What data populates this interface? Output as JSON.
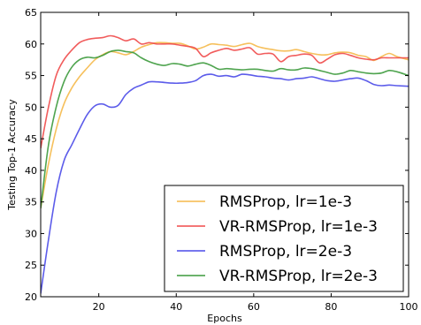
{
  "chart_data": {
    "type": "line",
    "title": "",
    "xlabel": "Epochs",
    "ylabel": "Testing Top-1 Accuracy",
    "xlim": [
      5,
      100
    ],
    "ylim": [
      20,
      65
    ],
    "xticks": [
      20,
      40,
      60,
      80,
      100
    ],
    "yticks": [
      20,
      25,
      30,
      35,
      40,
      45,
      50,
      55,
      60,
      65
    ],
    "grid": false,
    "legend_position": "lower-right",
    "series": [
      {
        "name": "RMSProp, lr=1e-3",
        "color": "#f5b94a",
        "x": [
          5,
          7,
          9,
          11,
          13,
          15,
          17,
          19,
          21,
          23,
          25,
          27,
          29,
          31,
          33,
          35,
          37,
          39,
          41,
          43,
          45,
          47,
          49,
          51,
          53,
          55,
          57,
          59,
          61,
          63,
          65,
          67,
          69,
          71,
          73,
          75,
          77,
          79,
          81,
          83,
          85,
          87,
          89,
          91,
          93,
          95,
          97,
          100
        ],
        "y": [
          34,
          41,
          46.5,
          50.5,
          53,
          54.8,
          56.2,
          57.5,
          58.3,
          58.8,
          58.6,
          58.3,
          58.8,
          59.5,
          59.9,
          60.2,
          60.2,
          60.1,
          60.1,
          59.7,
          59.2,
          59.5,
          60,
          59.9,
          59.8,
          59.6,
          59.9,
          60.1,
          59.6,
          59.3,
          59.1,
          58.9,
          58.9,
          59.1,
          58.8,
          58.5,
          58.3,
          58.3,
          58.6,
          58.7,
          58.6,
          58.2,
          58,
          57.4,
          58,
          58.5,
          58,
          57.5
        ]
      },
      {
        "name": "VR-RMSProp, lr=1e-3",
        "color": "#f04a4a",
        "x": [
          5,
          7,
          9,
          11,
          13,
          15,
          17,
          19,
          21,
          23,
          25,
          27,
          29,
          31,
          33,
          35,
          37,
          39,
          41,
          43,
          45,
          47,
          49,
          51,
          53,
          55,
          57,
          59,
          61,
          63,
          65,
          67,
          69,
          71,
          73,
          75,
          77,
          79,
          81,
          83,
          85,
          87,
          89,
          91,
          93,
          95,
          97,
          100
        ],
        "y": [
          43.5,
          50,
          55,
          57.5,
          59,
          60.2,
          60.7,
          60.9,
          61,
          61.3,
          61,
          60.5,
          60.8,
          60,
          60.2,
          60,
          60,
          60,
          59.8,
          59.6,
          59.3,
          58,
          58.6,
          59,
          59.3,
          59,
          59.2,
          59.4,
          58.4,
          58.5,
          58.4,
          57.2,
          58,
          58.2,
          58.4,
          58.2,
          57,
          57.6,
          58.3,
          58.5,
          58.2,
          57.8,
          57.6,
          57.5,
          57.8,
          57.8,
          57.8,
          57.8
        ]
      },
      {
        "name": "RMSProp, lr=2e-3",
        "color": "#4a4ae8",
        "x": [
          5,
          7,
          9,
          11,
          13,
          15,
          17,
          19,
          21,
          23,
          25,
          27,
          29,
          31,
          33,
          35,
          37,
          39,
          41,
          43,
          45,
          47,
          49,
          51,
          53,
          55,
          57,
          59,
          61,
          63,
          65,
          67,
          69,
          71,
          73,
          75,
          77,
          79,
          81,
          83,
          85,
          87,
          89,
          91,
          93,
          95,
          97,
          100
        ],
        "y": [
          20.5,
          29,
          36.5,
          41.5,
          44,
          46.5,
          48.8,
          50.2,
          50.5,
          50,
          50.3,
          52,
          53,
          53.5,
          54,
          54,
          53.9,
          53.8,
          53.8,
          53.9,
          54.2,
          55,
          55.2,
          54.9,
          55,
          54.8,
          55.2,
          55.1,
          54.9,
          54.8,
          54.6,
          54.5,
          54.3,
          54.5,
          54.6,
          54.8,
          54.5,
          54.2,
          54.1,
          54.3,
          54.5,
          54.6,
          54.2,
          53.6,
          53.4,
          53.5,
          53.4,
          53.3
        ]
      },
      {
        "name": "VR-RMSProp, lr=2e-3",
        "color": "#3c9a3c",
        "x": [
          5,
          7,
          9,
          11,
          13,
          15,
          17,
          19,
          21,
          23,
          25,
          27,
          29,
          31,
          33,
          35,
          37,
          39,
          41,
          43,
          45,
          47,
          49,
          51,
          53,
          55,
          57,
          59,
          61,
          63,
          65,
          67,
          69,
          71,
          73,
          75,
          77,
          79,
          81,
          83,
          85,
          87,
          89,
          91,
          93,
          95,
          97,
          100
        ],
        "y": [
          34,
          44,
          50,
          54,
          56.3,
          57.5,
          57.9,
          57.8,
          58.2,
          58.8,
          59,
          58.8,
          58.6,
          57.8,
          57.2,
          56.8,
          56.6,
          56.9,
          56.8,
          56.5,
          56.8,
          57,
          56.6,
          56,
          56.1,
          56,
          55.9,
          56,
          56,
          55.8,
          55.7,
          56.1,
          55.9,
          55.9,
          56.2,
          56.1,
          55.8,
          55.5,
          55.2,
          55.4,
          55.8,
          55.6,
          55.4,
          55.3,
          55.4,
          55.8,
          55.6,
          55
        ]
      }
    ]
  }
}
